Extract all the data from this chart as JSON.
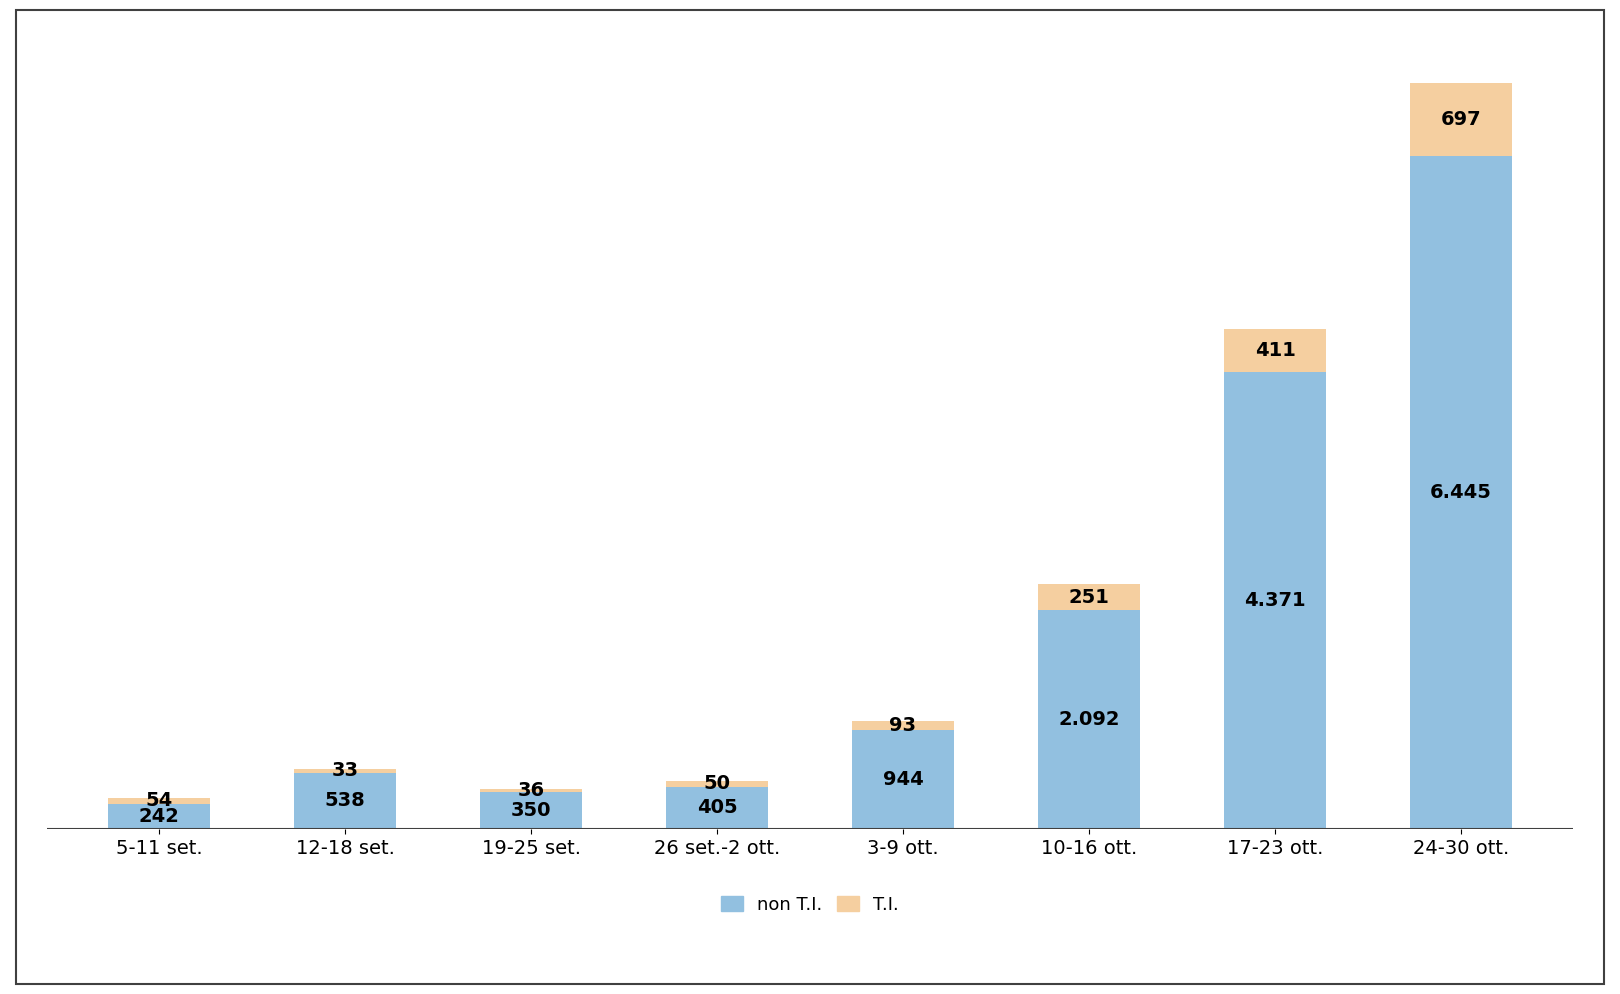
{
  "categories": [
    "5-11 set.",
    "12-18 set.",
    "19-25 set.",
    "26 set.-2 ott.",
    "3-9 ott.",
    "10-16 ott.",
    "17-23 ott.",
    "24-30 ott."
  ],
  "non_ti_values": [
    242,
    538,
    350,
    405,
    944,
    2092,
    4371,
    6445
  ],
  "ti_values": [
    54,
    33,
    36,
    50,
    93,
    251,
    411,
    697
  ],
  "non_ti_color": "#92C0E0",
  "ti_color": "#F5CFA0",
  "bar_width": 0.55,
  "ylim": [
    0,
    7600
  ],
  "background_color": "#ffffff",
  "legend_labels": [
    "non T.I.",
    "T.I."
  ],
  "label_fontsize": 14,
  "tick_fontsize": 14,
  "legend_fontsize": 13,
  "value_fontsize": 14,
  "border_color": "#404040"
}
